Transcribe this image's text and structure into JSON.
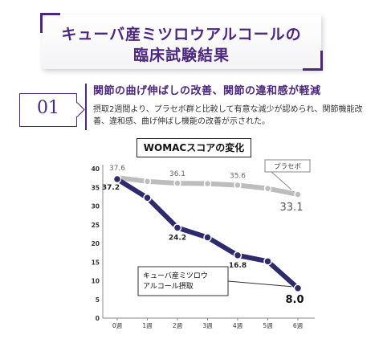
{
  "header": {
    "title_line1": "キューバ産ミツロウアルコールの",
    "title_line2": "臨床試験結果"
  },
  "section": {
    "number": "01",
    "heading": "関節の曲げ伸ばしの改善、関節の違和感が軽減",
    "description": "摂取2週間より、プラセボ群と比較して有意な減少が認められ、関節機能改善、違和感、曲げ伸ばし機能の改善が示された。"
  },
  "chart_data": {
    "type": "line",
    "title": "WOMACスコアの変化",
    "categories": [
      "0週",
      "1週",
      "2週",
      "3週",
      "4週",
      "5週",
      "6週"
    ],
    "yticks": [
      "0",
      "5",
      "10",
      "15",
      "20",
      "25",
      "30",
      "35",
      "40"
    ],
    "ylim": [
      0,
      40
    ],
    "series": [
      {
        "name": "プラセボ",
        "color": "#bdbdbd",
        "values": [
          37.6,
          36.6,
          36.1,
          36.0,
          35.6,
          34.7,
          33.1
        ],
        "point_labels": [
          "37.6",
          "",
          "36.1",
          "",
          "35.6",
          "",
          "33.1"
        ]
      },
      {
        "name": "キューバ産ミツロウアルコール摂取",
        "name_lines": [
          "キューバ産ミツロウ",
          "アルコール摂取"
        ],
        "color": "#2e2a6e",
        "values": [
          37.2,
          32.2,
          24.2,
          21.6,
          16.8,
          15.2,
          8.0
        ],
        "point_labels": [
          "37.2",
          "",
          "24.2",
          "",
          "16.8",
          "",
          "8.0"
        ]
      }
    ],
    "accent_color": "#4b2780"
  }
}
